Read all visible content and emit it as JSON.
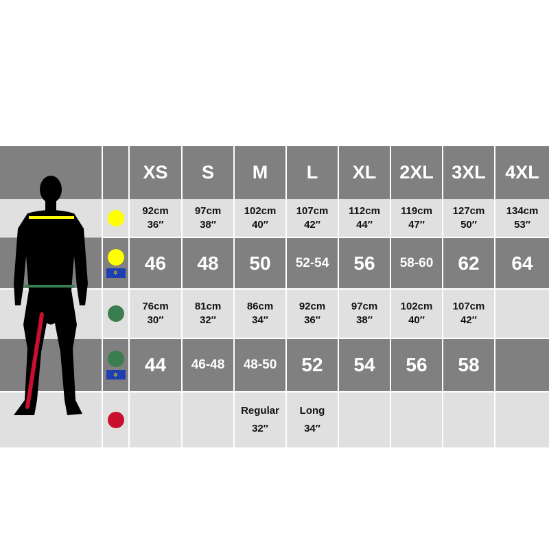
{
  "colors": {
    "chest": "#ffff00",
    "waist": "#3a7d4f",
    "inseam": "#c8102e",
    "dark_row": "#808080",
    "light_row": "#e0e0e0",
    "eu_flag": "#1d3fb3"
  },
  "icons": {
    "chest": "yellow-dot-icon",
    "waist": "green-dot-icon",
    "inseam": "red-dot-icon",
    "eu": "eu-flag-icon"
  },
  "sizes": [
    "XS",
    "S",
    "M",
    "L",
    "XL",
    "2XL",
    "3XL",
    "4XL"
  ],
  "rows": {
    "chest": [
      [
        "92cm",
        "36″"
      ],
      [
        "97cm",
        "38″"
      ],
      [
        "102cm",
        "40″"
      ],
      [
        "107cm",
        "42″"
      ],
      [
        "112cm",
        "44″"
      ],
      [
        "119cm",
        "47″"
      ],
      [
        "127cm",
        "50″"
      ],
      [
        "134cm",
        "53″"
      ]
    ],
    "chest_eu": [
      "46",
      "48",
      "50",
      "52-54",
      "56",
      "58-60",
      "62",
      "64"
    ],
    "waist": [
      [
        "76cm",
        "30″"
      ],
      [
        "81cm",
        "32″"
      ],
      [
        "86cm",
        "34″"
      ],
      [
        "92cm",
        "36″"
      ],
      [
        "97cm",
        "38″"
      ],
      [
        "102cm",
        "40″"
      ],
      [
        "107cm",
        "42″"
      ],
      [
        "",
        ""
      ]
    ],
    "waist_eu": [
      "44",
      "46-48",
      "48-50",
      "52",
      "54",
      "56",
      "58",
      ""
    ],
    "inseam": [
      [
        "",
        ""
      ],
      [
        "",
        ""
      ],
      [
        "Regular",
        "32″"
      ],
      [
        "Long",
        "34″"
      ],
      [
        "",
        ""
      ],
      [
        "",
        ""
      ],
      [
        "",
        ""
      ],
      [
        "",
        ""
      ]
    ]
  }
}
